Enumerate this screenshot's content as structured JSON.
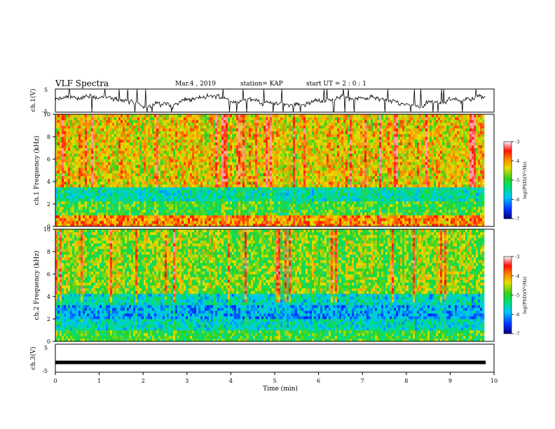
{
  "header": {
    "title": "VLF Spectra",
    "date": "Mar.4 , 2019",
    "station": "station= KAP",
    "start_ut": "start UT =  2 : 0 : 1"
  },
  "colors": {
    "waveform": "#000000",
    "colormap": [
      "#0000a0",
      "#0020ff",
      "#00b0ff",
      "#00e8b0",
      "#40e040",
      "#b8e020",
      "#f0e000",
      "#ff9000",
      "#ff2000",
      "#ffffff"
    ],
    "ch3_bar": "#000000"
  },
  "chart_data": [
    {
      "type": "line",
      "name": "ch1-waveform",
      "ylabel": "ch.1(V)",
      "ylim": [
        -5,
        5
      ],
      "yticks": [
        "5",
        "-5"
      ],
      "xlim": [
        0,
        10
      ],
      "approx_level_V": [
        -1.5,
        1.5
      ]
    },
    {
      "type": "heatmap",
      "name": "ch1-spectrogram",
      "ylabel": "ch.1 Frequency (kHz)",
      "ylim": [
        0,
        10
      ],
      "yticks": [
        "0",
        "2",
        "4",
        "6",
        "8",
        "10"
      ],
      "xlim": [
        0,
        10
      ],
      "data_end_min": 9.8,
      "colorbar": {
        "label": "log(PSD)(V²/Hz)",
        "range": [
          -7,
          -3
        ],
        "ticks": [
          "-3",
          "-4",
          "-5",
          "-6",
          "-7"
        ]
      },
      "bands_summary": [
        {
          "freq_kHz": [
            0,
            1.0
          ],
          "level": -4.0
        },
        {
          "freq_kHz": [
            1.0,
            2.2
          ],
          "level": -5.0
        },
        {
          "freq_kHz": [
            2.2,
            3.5
          ],
          "level": -5.5
        },
        {
          "freq_kHz": [
            3.5,
            10
          ],
          "level": -4.3
        }
      ]
    },
    {
      "type": "heatmap",
      "name": "ch2-spectrogram",
      "ylabel": "ch.2 Frequency (kHz)",
      "ylim": [
        0,
        10
      ],
      "yticks": [
        "0",
        "2",
        "4",
        "6",
        "8",
        "10"
      ],
      "xlim": [
        0,
        10
      ],
      "data_end_min": 9.8,
      "colorbar": {
        "label": "log(PSD)(V²/Hz)",
        "range": [
          -7,
          -3
        ],
        "ticks": [
          "-3",
          "-4",
          "-5",
          "-6",
          "-7"
        ]
      },
      "bands_summary": [
        {
          "freq_kHz": [
            0,
            1.0
          ],
          "level": -5.0
        },
        {
          "freq_kHz": [
            1.0,
            1.8
          ],
          "level": -5.6
        },
        {
          "freq_kHz": [
            1.8,
            3.2
          ],
          "level": -6.0
        },
        {
          "freq_kHz": [
            3.2,
            4.2
          ],
          "level": -5.6
        },
        {
          "freq_kHz": [
            4.2,
            10
          ],
          "level": -4.7
        }
      ]
    },
    {
      "type": "line",
      "name": "ch3-waveform",
      "ylabel": "ch.3(V)",
      "ylim": [
        -5,
        5
      ],
      "yticks": [
        "5",
        "-5"
      ],
      "xlim": [
        0,
        10
      ],
      "xlabel": "Time (min)",
      "xticks": [
        "0",
        "1",
        "2",
        "3",
        "4",
        "5",
        "6",
        "7",
        "8",
        "9",
        "10"
      ],
      "constant_value_V": -1.5
    }
  ]
}
